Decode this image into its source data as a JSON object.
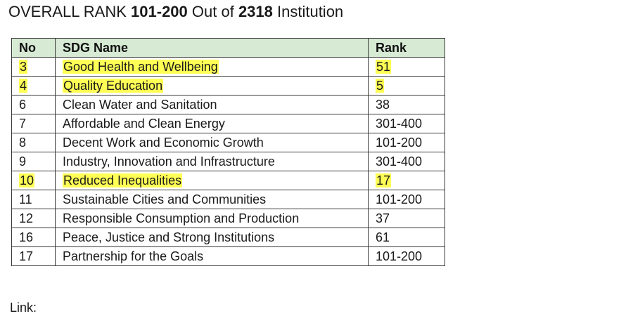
{
  "heading": {
    "prefix": "OVERALL RANK ",
    "rank": "101-200",
    "middle": " Out of ",
    "total": "2318",
    "suffix": " Institution"
  },
  "table": {
    "headers": {
      "no": "No",
      "name": "SDG Name",
      "rank": "Rank"
    },
    "highlight_color": "#ffff55",
    "header_color": "#d6ead4",
    "rows": [
      {
        "no": "3",
        "name": "Good Health and Wellbeing",
        "rank": "51",
        "highlight": true
      },
      {
        "no": "4",
        "name": "Quality Education",
        "rank": "5",
        "highlight": true
      },
      {
        "no": "6",
        "name": "Clean Water and Sanitation",
        "rank": "38",
        "highlight": false
      },
      {
        "no": "7",
        "name": "Affordable and Clean Energy",
        "rank": "301-400",
        "highlight": false
      },
      {
        "no": "8",
        "name": "Decent Work and Economic Growth",
        "rank": "101-200",
        "highlight": false
      },
      {
        "no": "9",
        "name": "Industry, Innovation and Infrastructure",
        "rank": "301-400",
        "highlight": false
      },
      {
        "no": "10",
        "name": "Reduced Inequalities",
        "rank": "17",
        "highlight": true
      },
      {
        "no": "11",
        "name": "Sustainable Cities and Communities",
        "rank": "101-200",
        "highlight": false
      },
      {
        "no": "12",
        "name": "Responsible Consumption and Production",
        "rank": "37",
        "highlight": false
      },
      {
        "no": "16",
        "name": "Peace, Justice and Strong Institutions",
        "rank": "61",
        "highlight": false
      },
      {
        "no": "17",
        "name": "Partnership for the Goals",
        "rank": "101-200",
        "highlight": false
      }
    ]
  },
  "footer": {
    "link_label": "Link:"
  }
}
